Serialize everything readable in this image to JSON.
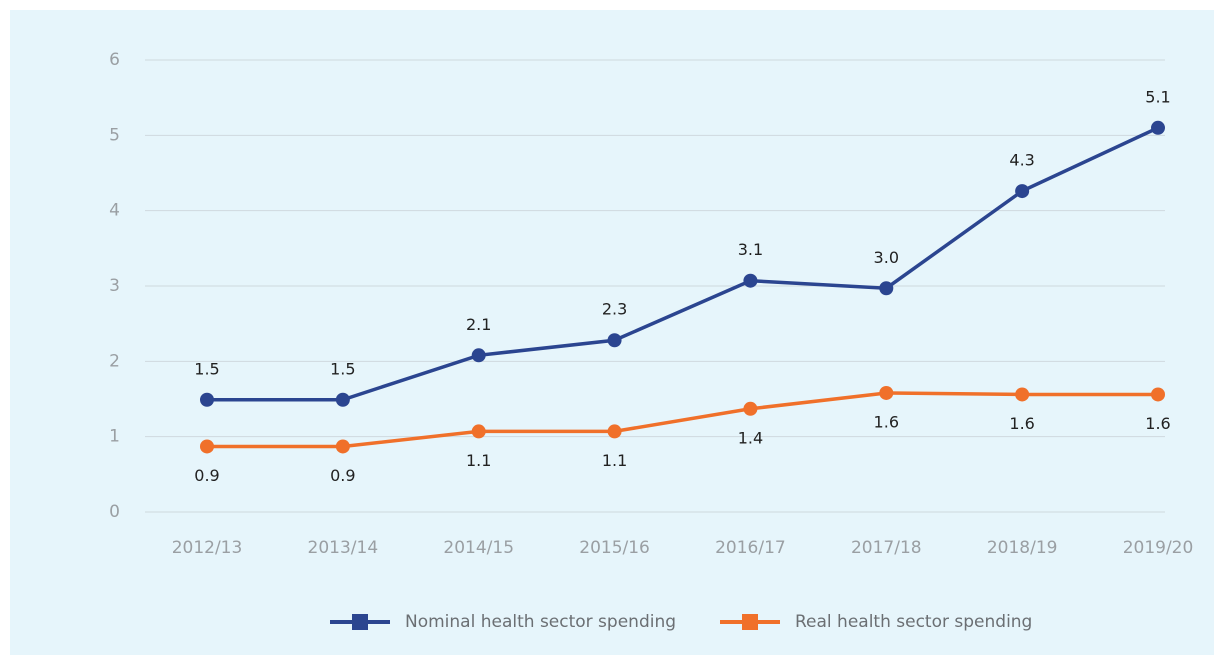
{
  "chart_data": {
    "type": "line",
    "categories": [
      "2012/13",
      "2013/14",
      "2014/15",
      "2015/16",
      "2016/17",
      "2017/18",
      "2018/19",
      "2019/20"
    ],
    "series": [
      {
        "name": "Nominal health sector spending",
        "color": "#2b4590",
        "values": [
          1.49,
          1.49,
          2.08,
          2.28,
          3.07,
          2.97,
          4.26,
          5.1
        ],
        "value_labels": [
          "1.5",
          "1.5",
          "2.1",
          "2.3",
          "3.1",
          "3.0",
          "4.3",
          "5.1"
        ]
      },
      {
        "name": "Real health sector spending",
        "color": "#f0702a",
        "values": [
          0.87,
          0.87,
          1.07,
          1.07,
          1.37,
          1.58,
          1.56,
          1.56
        ],
        "value_labels": [
          "0.9",
          "0.9",
          "1.1",
          "1.1",
          "1.4",
          "1.6",
          "1.6",
          "1.6"
        ]
      }
    ],
    "ylim": [
      0,
      6
    ],
    "yticks": [
      0,
      1,
      2,
      3,
      4,
      5,
      6
    ],
    "grid": true,
    "legend": "bottom"
  }
}
